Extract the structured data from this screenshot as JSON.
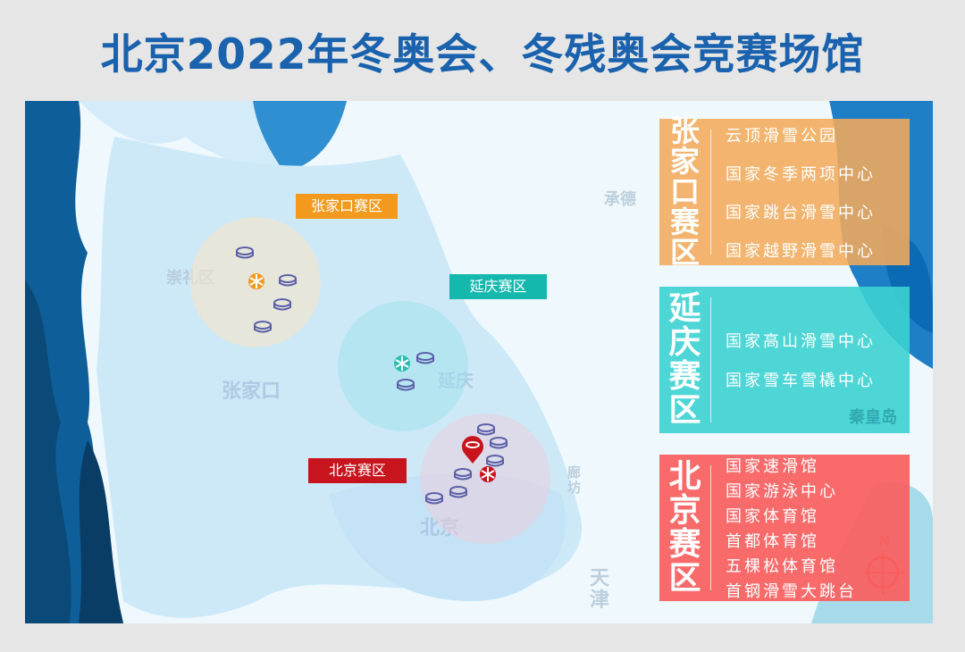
{
  "title": "北京2022年冬奥会、冬残奥会竞赛场馆",
  "colors": {
    "title": "#1a62ad",
    "zhangjiakou": "#f39a1e",
    "yanqing": "#15b8ad",
    "beijing": "#c8141c"
  },
  "map_labels": {
    "chongli": "崇礼区",
    "zhangjiakou": "张家口",
    "yanqing": "延庆",
    "beijing": "北京",
    "chengde": "承德",
    "qinhuangdao": "秦皇岛",
    "langfang": "廊坊",
    "tianjin": "天津"
  },
  "zone_tags": {
    "zhangjiakou": "张家口赛区",
    "yanqing": "延庆赛区",
    "beijing": "北京赛区"
  },
  "compass": "N",
  "panels": [
    {
      "head": [
        "张",
        "家",
        "口",
        "赛",
        "区"
      ],
      "venues": [
        "云顶滑雪公园",
        "国家冬季两项中心",
        "国家跳台滑雪中心",
        "国家越野滑雪中心"
      ]
    },
    {
      "head": [
        "延",
        "庆",
        "赛",
        "区"
      ],
      "venues": [
        "国家高山滑雪中心",
        "国家雪车雪橇中心"
      ]
    },
    {
      "head": [
        "北",
        "京",
        "赛",
        "区"
      ],
      "venues": [
        "国家速滑馆",
        "国家游泳中心",
        "国家体育馆",
        "首都体育馆",
        "五棵松体育馆",
        "首钢滑雪大跳台"
      ]
    }
  ]
}
